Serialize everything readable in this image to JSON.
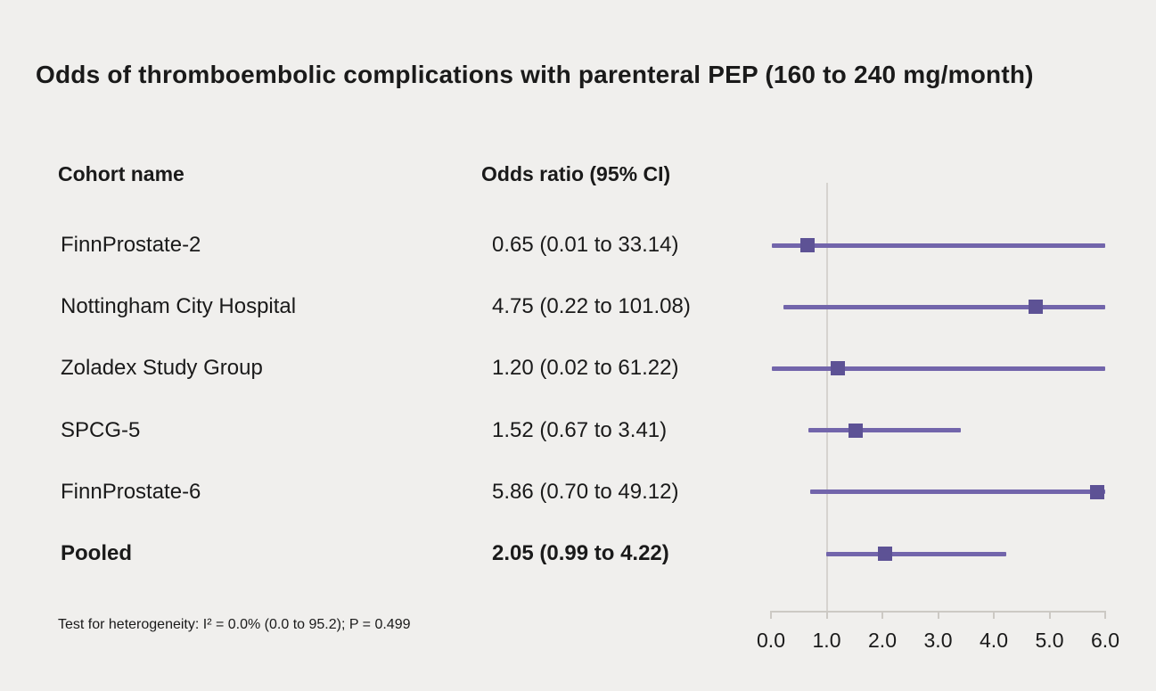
{
  "title": "Odds of thromboembolic complications with parenteral PEP (160 to 240 mg/month)",
  "columns": {
    "cohort": "Cohort name",
    "odds": "Odds ratio (95% CI)"
  },
  "footnote": "Test for heterogeneity: I² = 0.0% (0.0 to 95.2); P = 0.499",
  "colors": {
    "background": "#f0efed",
    "ci_line": "#7265ab",
    "marker": "#5d5295",
    "axis": "#ccc9c4",
    "ref_line": "#d6d3cf",
    "text": "#1a1a1a"
  },
  "chart_data": {
    "type": "scatter",
    "subtype": "forest-plot",
    "title": "Odds of thromboembolic complications with parenteral PEP (160 to 240 mg/month)",
    "xlabel": "",
    "ylabel": "",
    "xlim": [
      0.0,
      6.0
    ],
    "x_ticks": [
      0,
      1,
      2,
      3,
      4,
      5,
      6
    ],
    "x_tick_labels": [
      "0.0",
      "1.0",
      "2.0",
      "3.0",
      "4.0",
      "5.0",
      "6.0"
    ],
    "reference_line_x": 1.0,
    "grid": false,
    "rows": [
      {
        "label": "FinnProstate-2",
        "or_text": "0.65 (0.01 to 33.14)",
        "or": 0.65,
        "ci_low": 0.01,
        "ci_high": 33.14,
        "bold": false
      },
      {
        "label": "Nottingham City Hospital",
        "or_text": "4.75 (0.22 to 101.08)",
        "or": 4.75,
        "ci_low": 0.22,
        "ci_high": 101.08,
        "bold": false
      },
      {
        "label": "Zoladex Study Group",
        "or_text": "1.20 (0.02 to 61.22)",
        "or": 1.2,
        "ci_low": 0.02,
        "ci_high": 61.22,
        "bold": false
      },
      {
        "label": "SPCG-5",
        "or_text": "1.52 (0.67 to 3.41)",
        "or": 1.52,
        "ci_low": 0.67,
        "ci_high": 3.41,
        "bold": false
      },
      {
        "label": "FinnProstate-6",
        "or_text": "5.86 (0.70 to 49.12)",
        "or": 5.86,
        "ci_low": 0.7,
        "ci_high": 49.12,
        "bold": false
      },
      {
        "label": "Pooled",
        "or_text": "2.05 (0.99 to 4.22)",
        "or": 2.05,
        "ci_low": 0.99,
        "ci_high": 4.22,
        "bold": true
      }
    ]
  }
}
